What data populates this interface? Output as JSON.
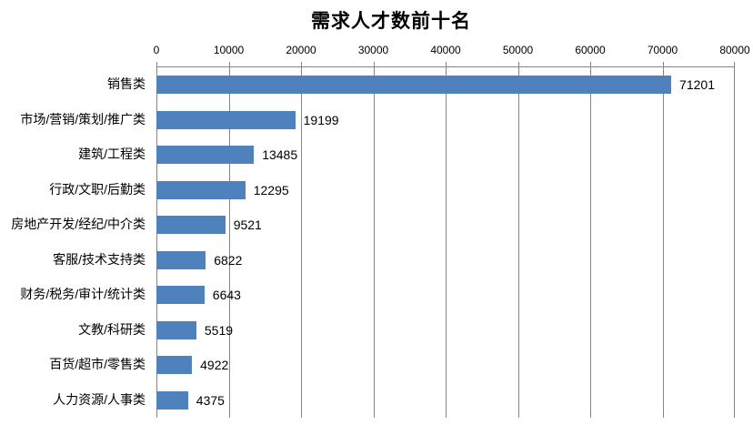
{
  "chart_data": {
    "type": "bar",
    "orientation": "horizontal",
    "title": "需求人才数前十名",
    "categories": [
      "销售类",
      "市场/营销/策划/推广类",
      "建筑/工程类",
      "行政/文职/后勤类",
      "房地产开发/经纪/中介类",
      "客服/技术支持类",
      "财务/税务/审计/统计类",
      "文教/科研类",
      "百货/超市/零售类",
      "人力资源/人事类"
    ],
    "values": [
      71201,
      19199,
      13485,
      12295,
      9521,
      6822,
      6643,
      5519,
      4922,
      4375
    ],
    "data_labels": [
      "71201",
      "19199",
      "13485",
      "12295",
      "9521",
      "6822",
      "6643",
      "5519",
      "4922",
      "4375"
    ],
    "xlabel": "",
    "ylabel": "",
    "xlim": [
      0,
      80000
    ],
    "x_ticks": [
      0,
      10000,
      20000,
      30000,
      40000,
      50000,
      60000,
      70000,
      80000
    ],
    "x_tick_labels": [
      "0",
      "10000",
      "20000",
      "30000",
      "40000",
      "50000",
      "60000",
      "70000",
      "80000"
    ],
    "axis_position": "top",
    "grid": true,
    "legend": false,
    "bar_color": "#4F81BD",
    "grid_color": "#848484",
    "text_color": "#000000",
    "background_color": "#FFFFFF"
  }
}
